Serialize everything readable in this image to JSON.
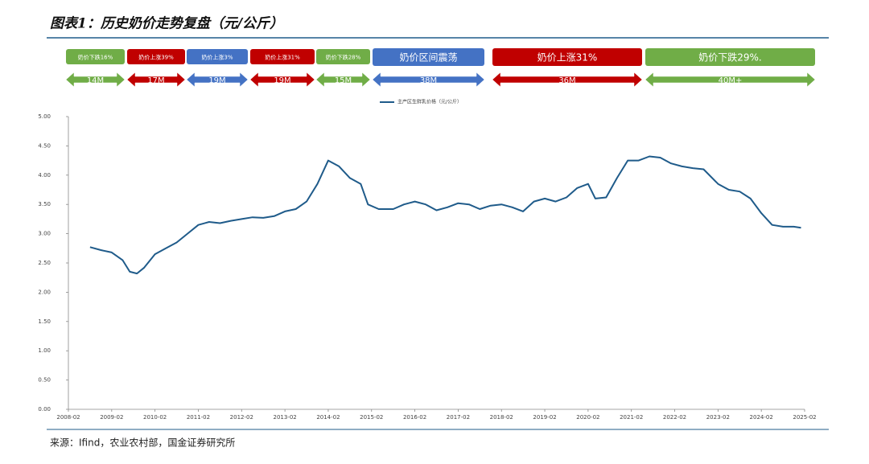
{
  "chart_data": {
    "type": "line",
    "title": "图表1：历史奶价走势复盘（元/公斤）",
    "source": "来源：Ifind，农业农村部，国金证券研究所",
    "phases": [
      {
        "label": "奶价下跌16%",
        "duration": "14M",
        "color": "#70ad47"
      },
      {
        "label": "奶价上涨39%",
        "duration": "17M",
        "color": "#c00000"
      },
      {
        "label": "奶价上涨3%",
        "duration": "19M",
        "color": "#4472c4"
      },
      {
        "label": "奶价上涨31%",
        "duration": "19M",
        "color": "#c00000"
      },
      {
        "label": "奶价下跌28%",
        "duration": "15M",
        "color": "#70ad47"
      },
      {
        "label": "奶价区间震荡",
        "duration": "38M",
        "color": "#4472c4"
      },
      {
        "label": "奶价上涨31%",
        "duration": "36M",
        "color": "#c00000"
      },
      {
        "label": "奶价下跌29%.",
        "duration": "40M+",
        "color": "#70ad47"
      }
    ],
    "x": [
      "2008-08",
      "2008-11",
      "2009-02",
      "2009-05",
      "2009-07",
      "2009-09",
      "2009-11",
      "2010-02",
      "2010-05",
      "2010-08",
      "2010-11",
      "2011-02",
      "2011-05",
      "2011-08",
      "2011-11",
      "2012-02",
      "2012-05",
      "2012-08",
      "2012-11",
      "2013-02",
      "2013-05",
      "2013-08",
      "2013-11",
      "2014-02",
      "2014-05",
      "2014-08",
      "2014-11",
      "2015-01",
      "2015-04",
      "2015-08",
      "2015-11",
      "2016-02",
      "2016-05",
      "2016-08",
      "2016-11",
      "2017-02",
      "2017-05",
      "2017-08",
      "2017-11",
      "2018-02",
      "2018-05",
      "2018-08",
      "2018-11",
      "2019-02",
      "2019-05",
      "2019-08",
      "2019-11",
      "2020-02",
      "2020-04",
      "2020-07",
      "2020-10",
      "2021-01",
      "2021-04",
      "2021-07",
      "2021-10",
      "2022-01",
      "2022-04",
      "2022-07",
      "2022-10",
      "2023-02",
      "2023-05",
      "2023-08",
      "2023-11",
      "2024-02",
      "2024-05",
      "2024-08",
      "2024-11",
      "2025-01"
    ],
    "series": [
      {
        "name": "主产区生鲜乳价格（元/公斤）",
        "color": "#1f5b8a",
        "values": [
          2.77,
          2.72,
          2.68,
          2.55,
          2.35,
          2.32,
          2.42,
          2.65,
          2.75,
          2.85,
          3.0,
          3.15,
          3.2,
          3.18,
          3.22,
          3.25,
          3.28,
          3.27,
          3.3,
          3.38,
          3.42,
          3.55,
          3.85,
          4.25,
          4.15,
          3.95,
          3.85,
          3.5,
          3.42,
          3.42,
          3.5,
          3.55,
          3.5,
          3.4,
          3.45,
          3.52,
          3.5,
          3.42,
          3.48,
          3.5,
          3.45,
          3.38,
          3.55,
          3.6,
          3.55,
          3.62,
          3.78,
          3.85,
          3.6,
          3.62,
          3.95,
          4.25,
          4.25,
          4.32,
          4.3,
          4.2,
          4.15,
          4.12,
          4.1,
          3.85,
          3.75,
          3.72,
          3.6,
          3.35,
          3.15,
          3.12,
          3.12,
          3.1
        ]
      }
    ],
    "xlim": [
      "2008-02",
      "2025-02"
    ],
    "xticks": [
      "2008-02",
      "2009-02",
      "2010-02",
      "2011-02",
      "2012-02",
      "2013-02",
      "2014-02",
      "2015-02",
      "2016-02",
      "2017-02",
      "2018-02",
      "2019-02",
      "2020-02",
      "2021-02",
      "2022-02",
      "2023-02",
      "2024-02",
      "2025-02"
    ],
    "ylim": [
      0,
      5
    ],
    "yticks": [
      {
        "value": 0,
        "label": "0.00"
      },
      {
        "value": 0.5,
        "label": "0.50"
      },
      {
        "value": 1,
        "label": "1.00"
      },
      {
        "value": 1.5,
        "label": "1.50"
      },
      {
        "value": 2,
        "label": "2.00"
      },
      {
        "value": 2.5,
        "label": "2.50"
      },
      {
        "value": 3,
        "label": "3.00"
      },
      {
        "value": 3.5,
        "label": "3.50"
      },
      {
        "value": 4,
        "label": "4.00"
      },
      {
        "value": 4.5,
        "label": "4.50"
      },
      {
        "value": 5,
        "label": "5.00"
      }
    ],
    "grid": false,
    "legend": "top"
  }
}
